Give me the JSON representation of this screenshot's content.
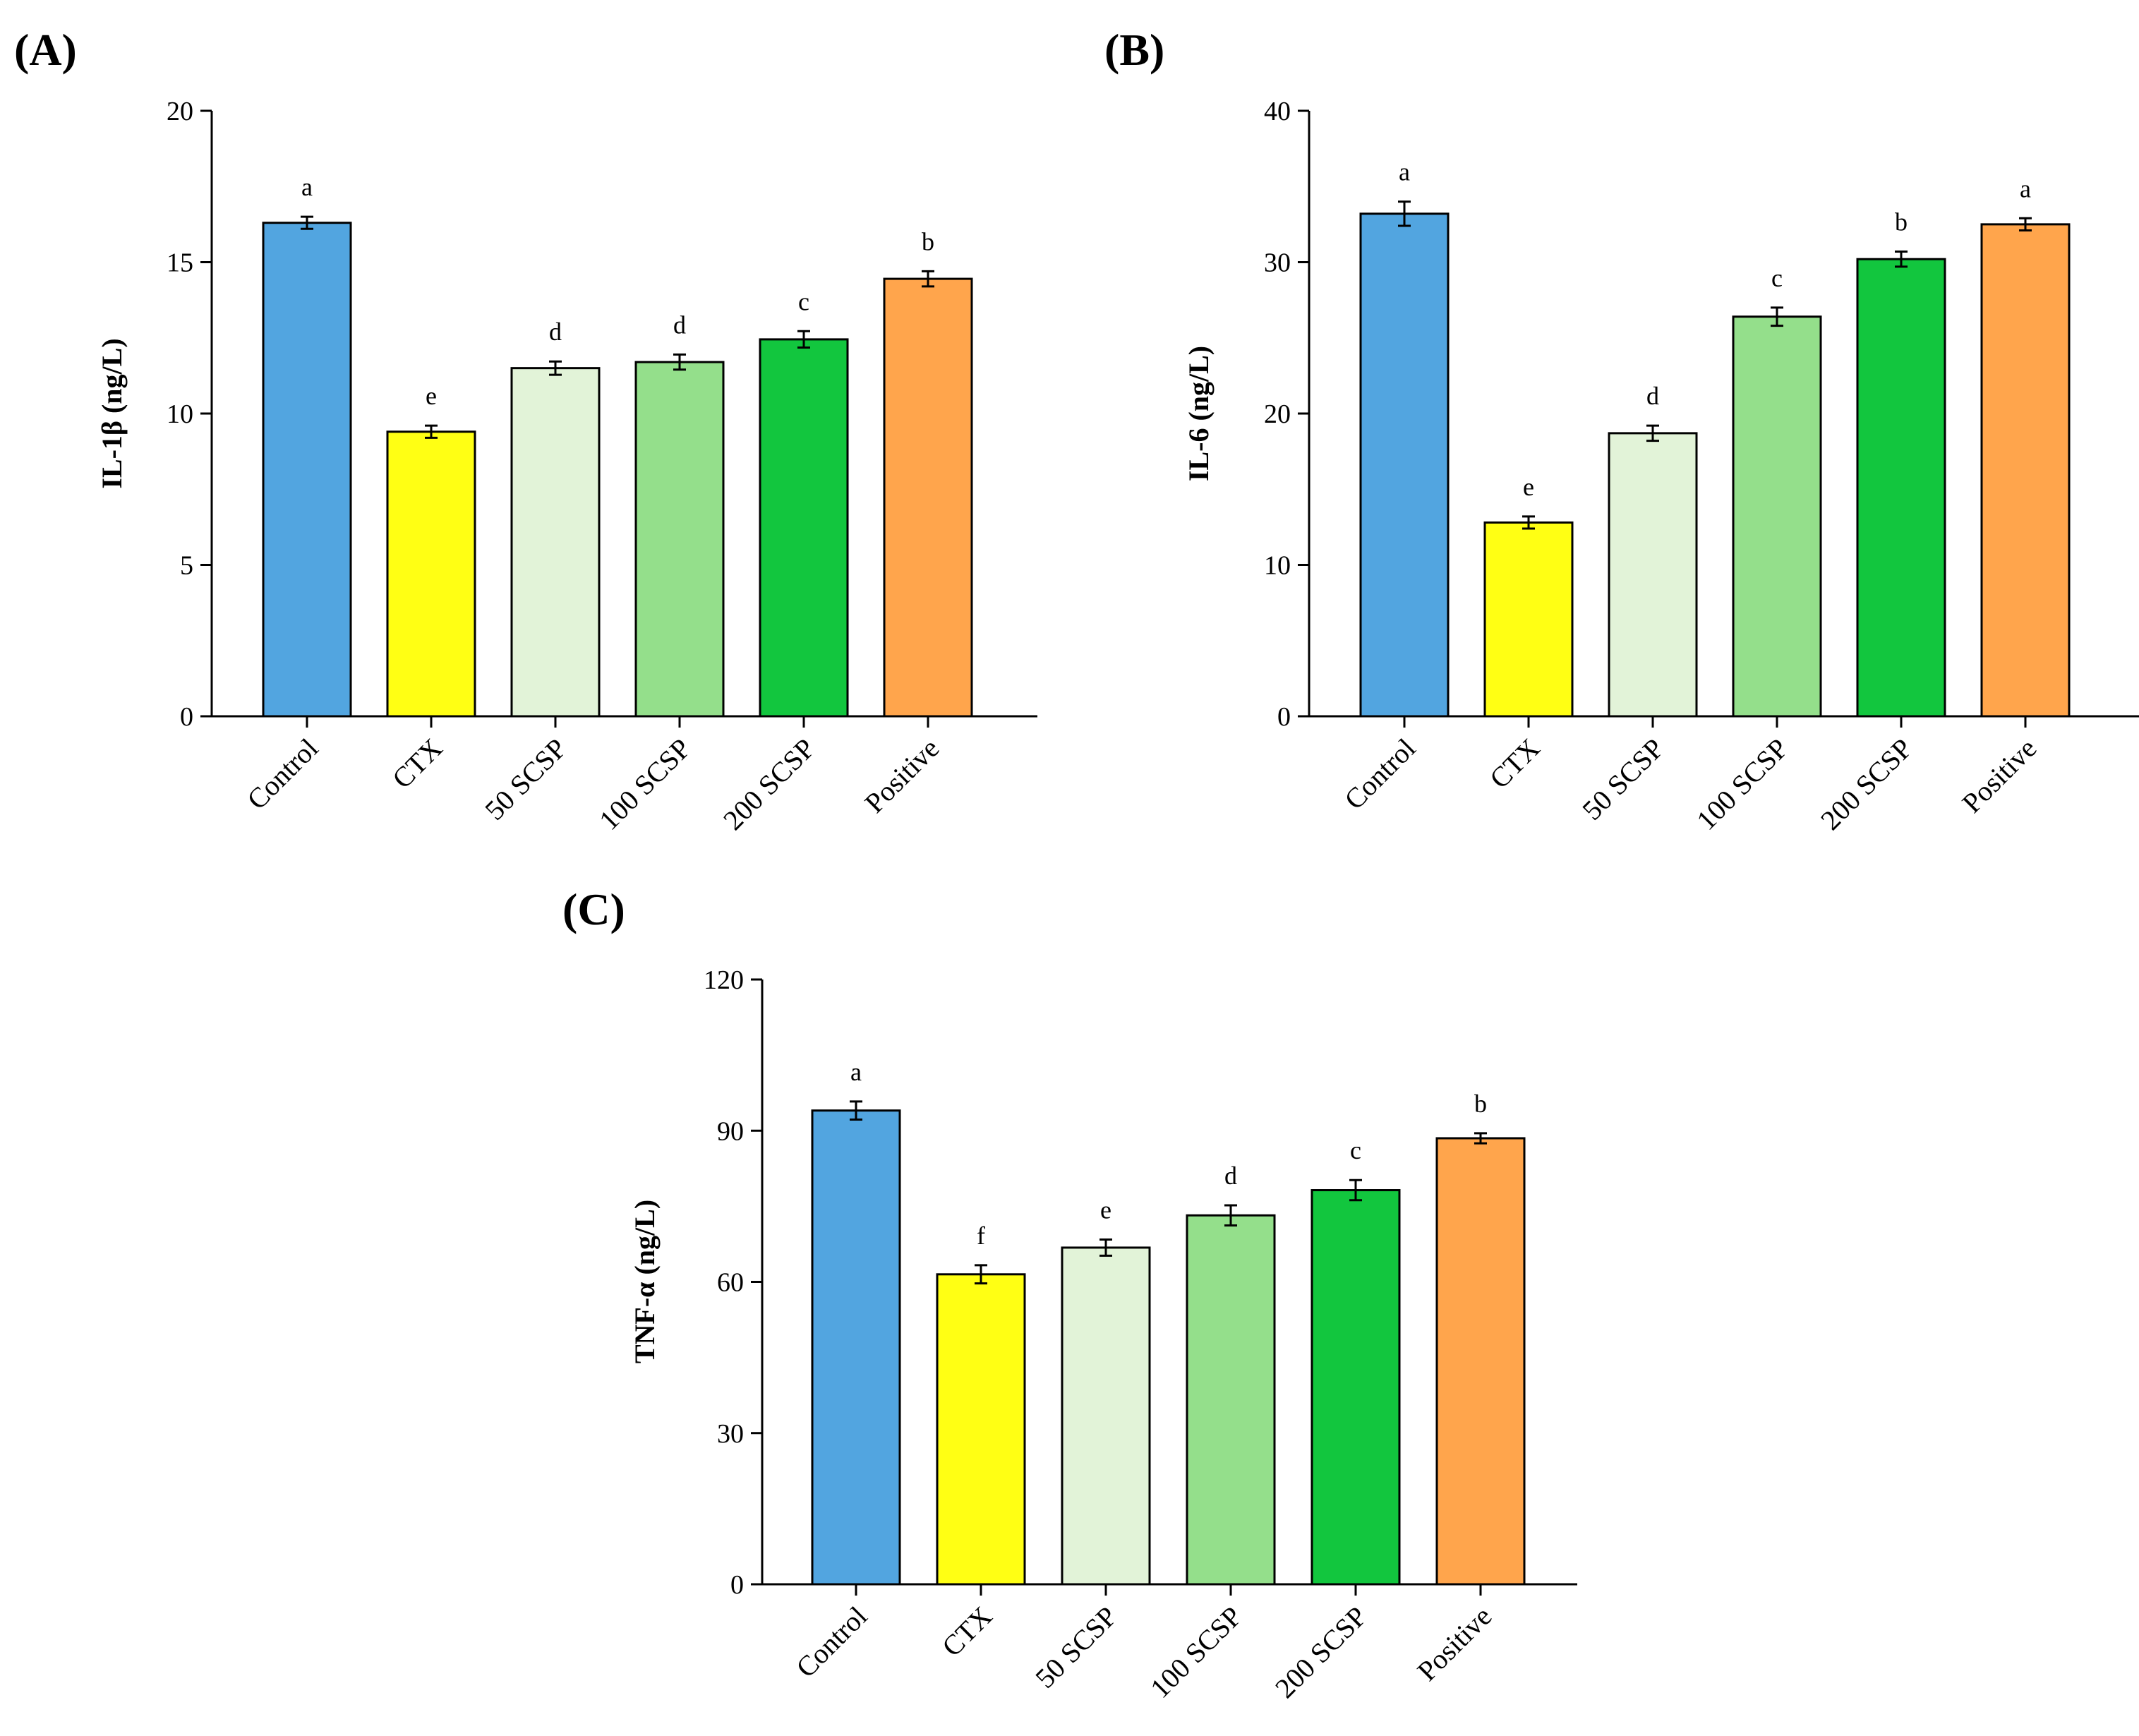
{
  "chart_data": [
    {
      "panel": "(A)",
      "type": "bar",
      "categories": [
        "Control",
        "CTX",
        "50 SCSP",
        "100 SCSP",
        "200 SCSP",
        "Positive"
      ],
      "values": [
        16.3,
        9.4,
        11.5,
        11.7,
        12.45,
        14.45
      ],
      "errors": [
        0.2,
        0.2,
        0.22,
        0.25,
        0.27,
        0.25
      ],
      "significance": [
        "a",
        "e",
        "d",
        "d",
        "c",
        "b"
      ],
      "ylabel": "IL-1β (ng/L)",
      "ylim": [
        0,
        20
      ],
      "yticks": [
        0,
        5,
        10,
        15,
        20
      ],
      "colors": [
        "#52a5e0",
        "#ffff14",
        "#e2f3d8",
        "#94df8b",
        "#12c63e",
        "#ffa54c"
      ]
    },
    {
      "panel": "(B)",
      "type": "bar",
      "categories": [
        "Control",
        "CTX",
        "50 SCSP",
        "100 SCSP",
        "200 SCSP",
        "Positive"
      ],
      "values": [
        33.2,
        12.8,
        18.7,
        26.4,
        30.2,
        32.5
      ],
      "errors": [
        0.8,
        0.4,
        0.5,
        0.6,
        0.5,
        0.4
      ],
      "significance": [
        "a",
        "e",
        "d",
        "c",
        "b",
        "a"
      ],
      "ylabel": "IL-6 (ng/L)",
      "ylim": [
        0,
        40
      ],
      "yticks": [
        0,
        10,
        20,
        30,
        40
      ],
      "colors": [
        "#52a5e0",
        "#ffff14",
        "#e2f3d8",
        "#94df8b",
        "#12c63e",
        "#ffa54c"
      ]
    },
    {
      "panel": "(C)",
      "type": "bar",
      "categories": [
        "Control",
        "CTX",
        "50 SCSP",
        "100 SCSP",
        "200 SCSP",
        "Positive"
      ],
      "values": [
        94,
        61.5,
        66.8,
        73.2,
        78.2,
        88.5
      ],
      "errors": [
        1.8,
        1.8,
        1.6,
        2.0,
        2.0,
        1.0
      ],
      "significance": [
        "a",
        "f",
        "e",
        "d",
        "c",
        "b"
      ],
      "ylabel": "TNF-α (ng/L)",
      "ylim": [
        0,
        120
      ],
      "yticks": [
        0,
        30,
        60,
        90,
        120
      ],
      "colors": [
        "#52a5e0",
        "#ffff14",
        "#e2f3d8",
        "#94df8b",
        "#12c63e",
        "#ffa54c"
      ]
    }
  ]
}
